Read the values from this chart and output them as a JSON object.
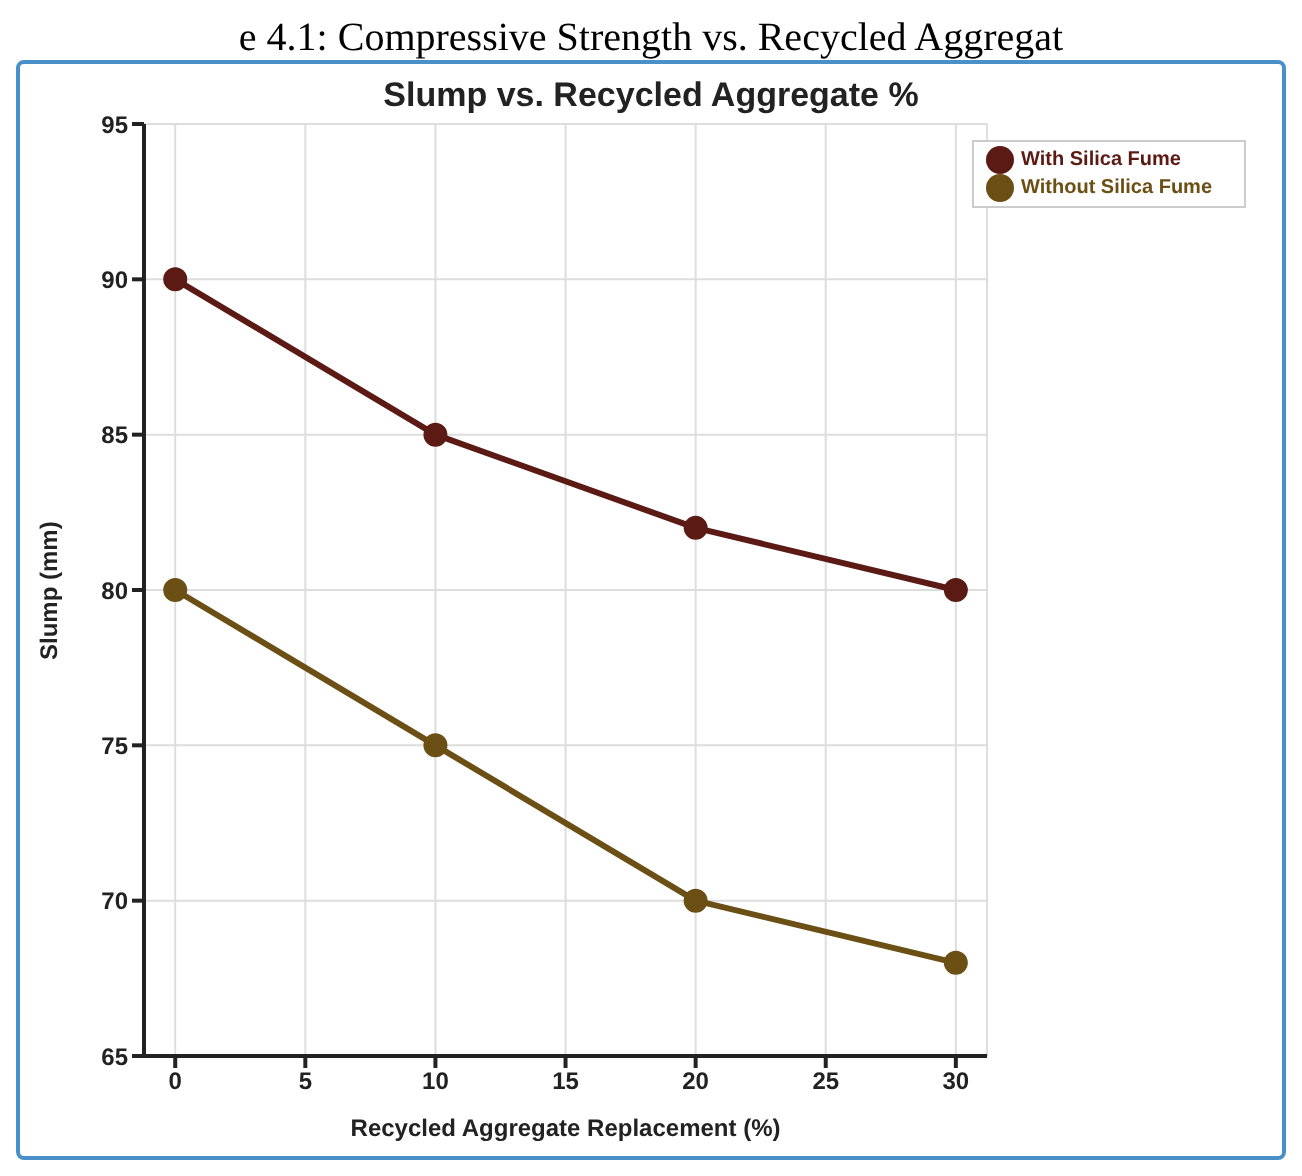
{
  "chart_data": {
    "type": "line",
    "title": "Slump vs. Recycled Aggregate %",
    "xlabel": "Recycled Aggregate Replacement (%)",
    "ylabel": "Slump (mm)",
    "annotations": [
      "e 4.1: Compressive Strength vs. Recycled Aggregat"
    ],
    "x": [
      0,
      10,
      20,
      30
    ],
    "series": [
      {
        "name": "Without Silica Fume",
        "color": "#6b4f14",
        "values": [
          80,
          75,
          70,
          68
        ]
      },
      {
        "name": "With Silica Fume",
        "color": "#5c1a14",
        "values": [
          90,
          85,
          82,
          80
        ]
      }
    ],
    "xlim": [
      -1.2,
      31.2
    ],
    "xticks": [
      0,
      5,
      10,
      15,
      20,
      25,
      30
    ],
    "ylim": [
      65,
      95
    ],
    "yticks": [
      65,
      70,
      75,
      80,
      85,
      90,
      95
    ],
    "grid": true,
    "legend": "top right",
    "marker": "circle",
    "line_style": "solid"
  }
}
